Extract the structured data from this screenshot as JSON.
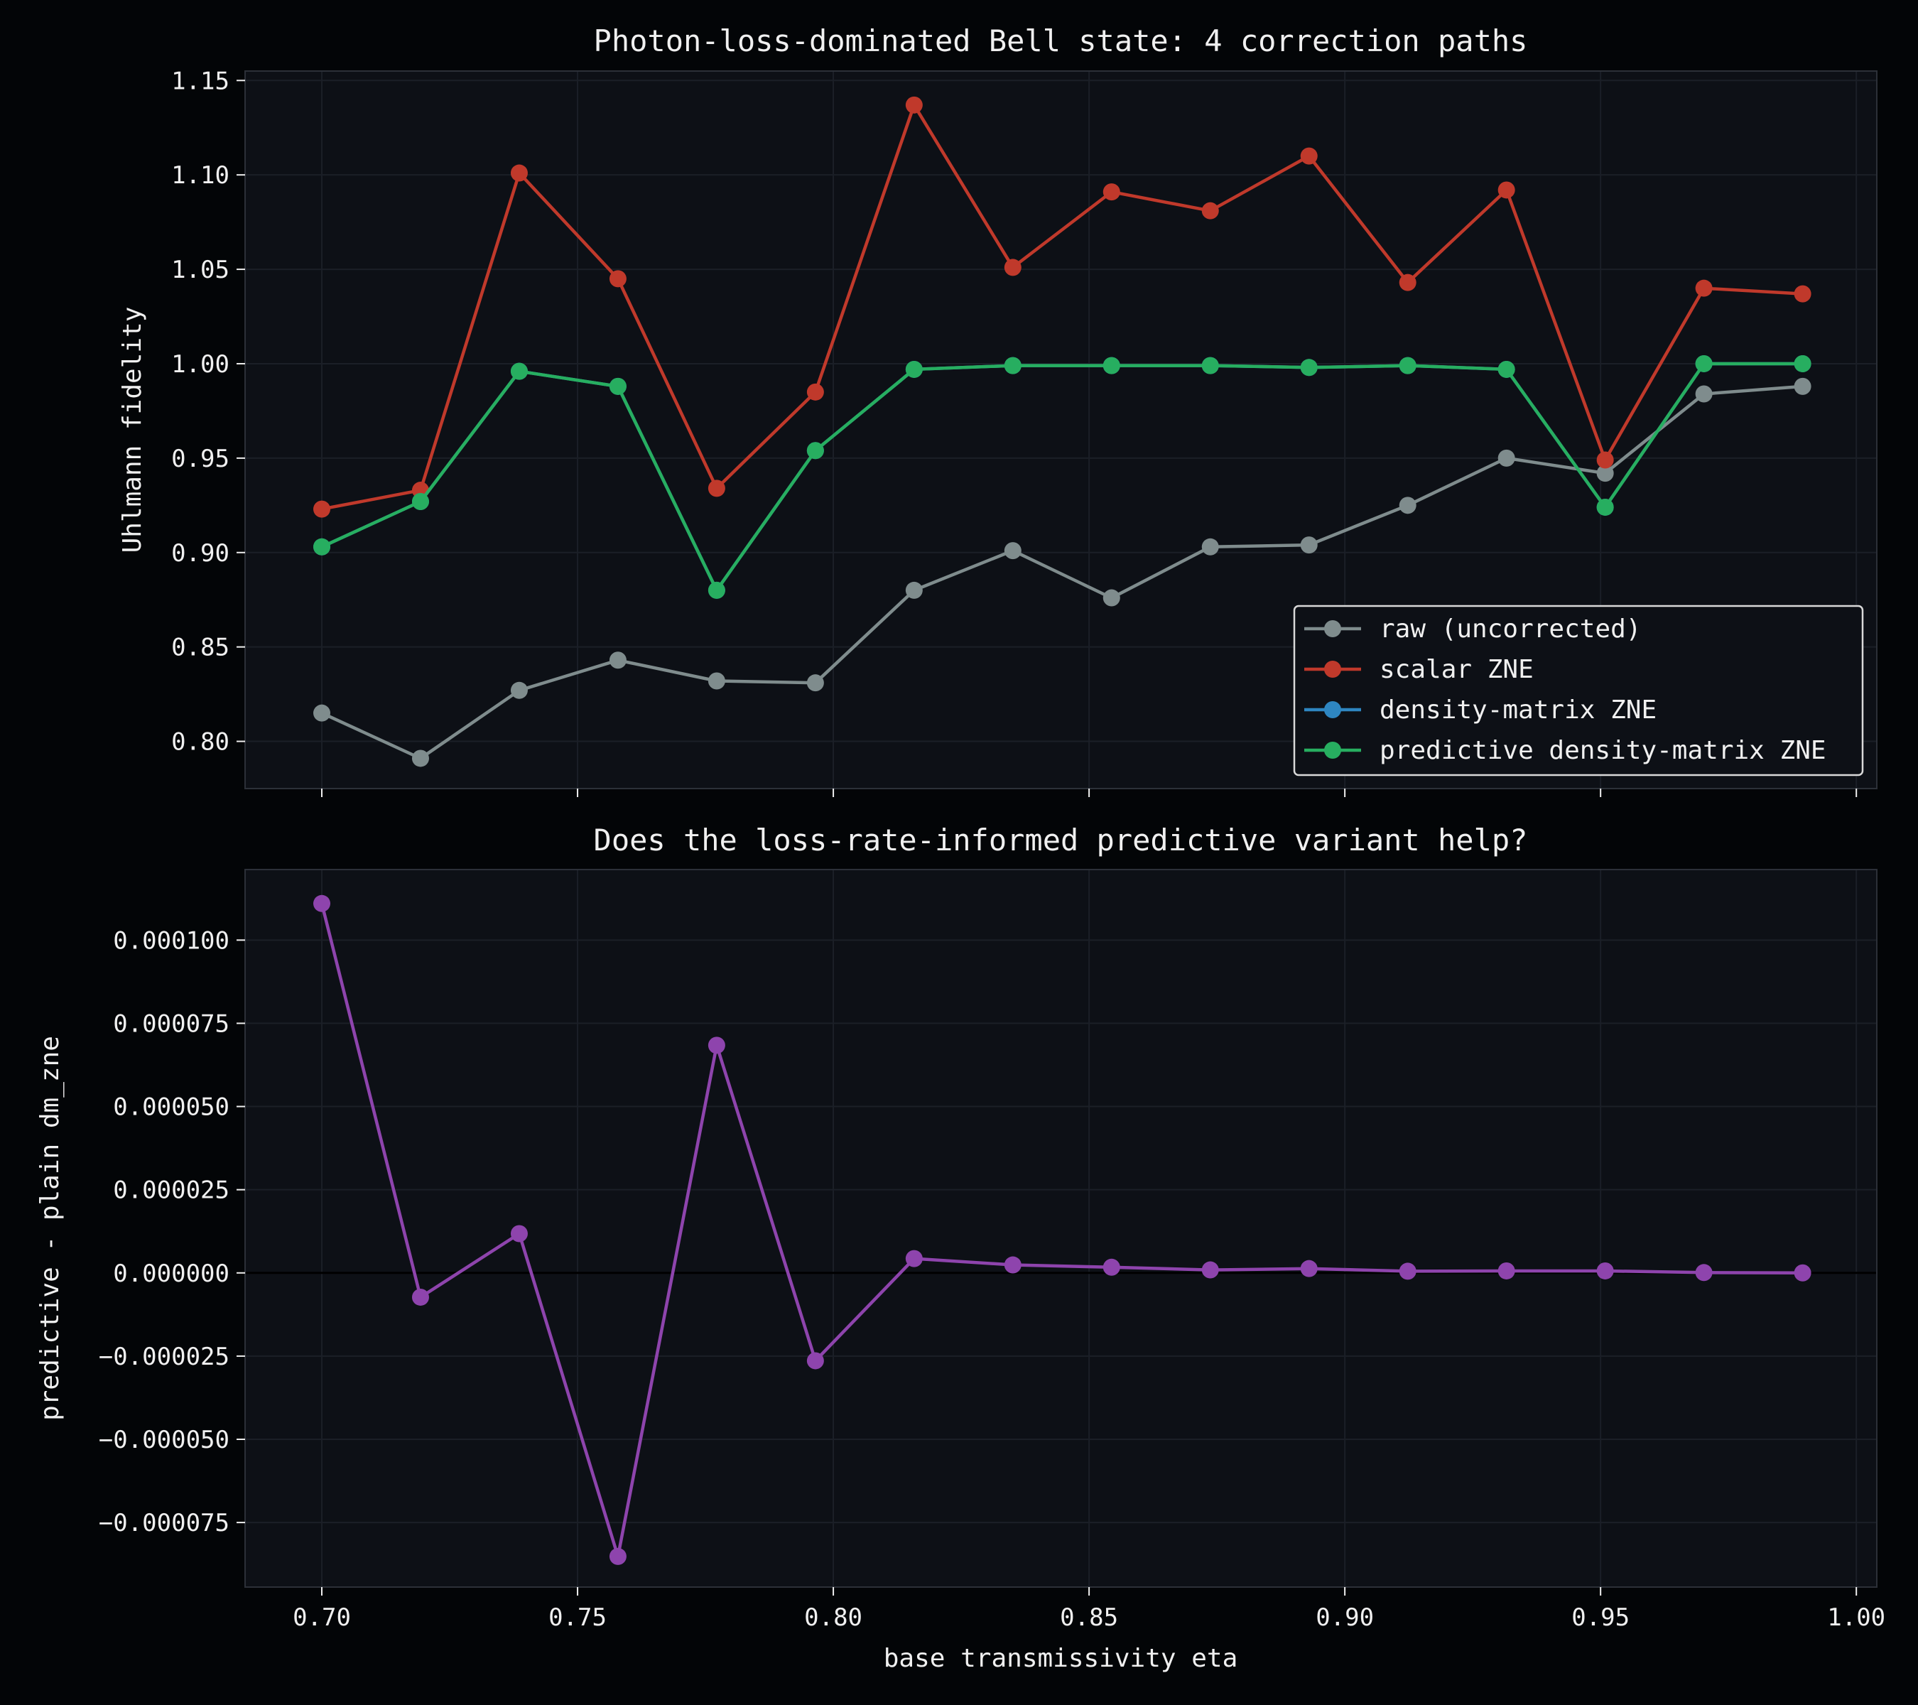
{
  "colors": {
    "figure_bg": "#030507",
    "axes_bg": "#0d1016",
    "spine": "#2c3038",
    "grid": "#1b1f27",
    "text": "#f0f0f0",
    "zero_line": "#000000",
    "legend_bg": "#0d1016",
    "legend_border": "#d9d9d9"
  },
  "chart_data": [
    {
      "type": "line",
      "title": "Photon-loss-dominated Bell state: 4 correction paths",
      "xlabel": "",
      "ylabel": "Uhlmann fidelity",
      "xlim": [
        0.685,
        1.004
      ],
      "ylim": [
        0.775,
        1.155
      ],
      "grid": true,
      "legend_position": "lower-right",
      "xticks": [
        0.7,
        0.75,
        0.8,
        0.85,
        0.9,
        0.95,
        1.0
      ],
      "xtick_labels_shown": false,
      "yticks": [
        0.8,
        0.85,
        0.9,
        0.95,
        1.0,
        1.05,
        1.1,
        1.15
      ],
      "ytick_labels": [
        "0.80",
        "0.85",
        "0.90",
        "0.95",
        "1.00",
        "1.05",
        "1.10",
        "1.15"
      ],
      "x": [
        0.7,
        0.7193,
        0.7386,
        0.7579,
        0.7772,
        0.7965,
        0.8158,
        0.8351,
        0.8544,
        0.8737,
        0.893,
        0.9123,
        0.9316,
        0.9509,
        0.9702,
        0.9895
      ],
      "series": [
        {
          "name": "raw (uncorrected)",
          "color": "#7f8c8d",
          "values": [
            0.815,
            0.791,
            0.827,
            0.843,
            0.832,
            0.831,
            0.88,
            0.901,
            0.876,
            0.903,
            0.904,
            0.925,
            0.95,
            0.942,
            0.984,
            0.988
          ]
        },
        {
          "name": "scalar ZNE",
          "color": "#c0392b",
          "values": [
            0.923,
            0.933,
            1.101,
            1.045,
            0.934,
            0.985,
            1.137,
            1.051,
            1.091,
            1.081,
            1.11,
            1.043,
            1.092,
            0.949,
            1.04,
            1.037
          ]
        },
        {
          "name": "density-matrix ZNE",
          "color": "#2e86c1",
          "values": [
            0.903,
            0.927,
            0.996,
            0.988,
            0.88,
            0.954,
            0.997,
            0.999,
            0.999,
            0.999,
            0.998,
            0.999,
            0.997,
            0.924,
            1.0,
            1.0
          ]
        },
        {
          "name": "predictive density-matrix ZNE",
          "color": "#27ae60",
          "values": [
            0.903,
            0.927,
            0.996,
            0.988,
            0.88,
            0.954,
            0.997,
            0.999,
            0.999,
            0.999,
            0.998,
            0.999,
            0.997,
            0.924,
            1.0,
            1.0
          ]
        }
      ]
    },
    {
      "type": "line",
      "title": "Does the loss-rate-informed predictive variant help?",
      "xlabel": "base transmissivity eta",
      "ylabel": "predictive - plain dm_zne",
      "xlim": [
        0.685,
        1.004
      ],
      "ylim": [
        -9.44e-05,
        0.0001212
      ],
      "grid": true,
      "zero_line": true,
      "xticks": [
        0.7,
        0.75,
        0.8,
        0.85,
        0.9,
        0.95,
        1.0
      ],
      "xtick_labels": [
        "0.70",
        "0.75",
        "0.80",
        "0.85",
        "0.90",
        "0.95",
        "1.00"
      ],
      "yticks": [
        -7.5e-05,
        -5e-05,
        -2.5e-05,
        0.0,
        2.5e-05,
        5e-05,
        7.5e-05,
        0.0001
      ],
      "ytick_labels": [
        "−0.000075",
        "−0.000050",
        "−0.000025",
        "0.000000",
        "0.000025",
        "0.000050",
        "0.000075",
        "0.000100"
      ],
      "x": [
        0.7,
        0.7193,
        0.7386,
        0.7579,
        0.7772,
        0.7965,
        0.8158,
        0.8351,
        0.8544,
        0.8737,
        0.893,
        0.9123,
        0.9316,
        0.9509,
        0.9702,
        0.9895
      ],
      "series": [
        {
          "color": "#8e44ad",
          "values": [
            0.000111,
            -7.3e-06,
            1.18e-05,
            -8.52e-05,
            6.84e-05,
            -2.64e-05,
            4.3e-06,
            2.4e-06,
            1.7e-06,
            9e-07,
            1.3e-06,
            5e-07,
            6e-07,
            6e-07,
            1e-07,
            0.0
          ]
        }
      ]
    }
  ]
}
